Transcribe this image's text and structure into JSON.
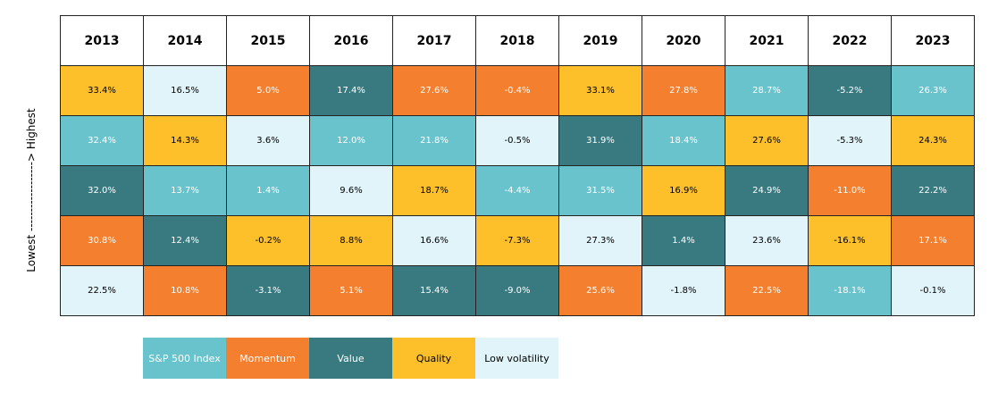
{
  "axis_label": "Lowest ------------------> Highest",
  "table": {
    "columns": [
      "2013",
      "2014",
      "2015",
      "2016",
      "2017",
      "2018",
      "2019",
      "2020",
      "2021",
      "2022",
      "2023"
    ],
    "rows": [
      [
        {
          "text": "33.4%",
          "group": 3
        },
        {
          "text": "16.5%",
          "group": 4
        },
        {
          "text": "5.0%",
          "group": 1
        },
        {
          "text": "17.4%",
          "group": 2
        },
        {
          "text": "27.6%",
          "group": 1
        },
        {
          "text": "-0.4%",
          "group": 1
        },
        {
          "text": "33.1%",
          "group": 3
        },
        {
          "text": "27.8%",
          "group": 1
        },
        {
          "text": "28.7%",
          "group": 0
        },
        {
          "text": "-5.2%",
          "group": 2
        },
        {
          "text": "26.3%",
          "group": 0
        }
      ],
      [
        {
          "text": "32.4%",
          "group": 0
        },
        {
          "text": "14.3%",
          "group": 3
        },
        {
          "text": "3.6%",
          "group": 4
        },
        {
          "text": "12.0%",
          "group": 0
        },
        {
          "text": "21.8%",
          "group": 0
        },
        {
          "text": "-0.5%",
          "group": 4
        },
        {
          "text": "31.9%",
          "group": 2
        },
        {
          "text": "18.4%",
          "group": 0
        },
        {
          "text": "27.6%",
          "group": 3
        },
        {
          "text": "-5.3%",
          "group": 4
        },
        {
          "text": "24.3%",
          "group": 3
        }
      ],
      [
        {
          "text": "32.0%",
          "group": 2
        },
        {
          "text": "13.7%",
          "group": 0
        },
        {
          "text": "1.4%",
          "group": 0
        },
        {
          "text": "9.6%",
          "group": 4
        },
        {
          "text": "18.7%",
          "group": 3
        },
        {
          "text": "-4.4%",
          "group": 0
        },
        {
          "text": "31.5%",
          "group": 0
        },
        {
          "text": "16.9%",
          "group": 3
        },
        {
          "text": "24.9%",
          "group": 2
        },
        {
          "text": "-11.0%",
          "group": 1
        },
        {
          "text": "22.2%",
          "group": 2
        }
      ],
      [
        {
          "text": "30.8%",
          "group": 1
        },
        {
          "text": "12.4%",
          "group": 2
        },
        {
          "text": "-0.2%",
          "group": 3
        },
        {
          "text": "8.8%",
          "group": 3
        },
        {
          "text": "16.6%",
          "group": 4
        },
        {
          "text": "-7.3%",
          "group": 3
        },
        {
          "text": "27.3%",
          "group": 4
        },
        {
          "text": "1.4%",
          "group": 2
        },
        {
          "text": "23.6%",
          "group": 4
        },
        {
          "text": "-16.1%",
          "group": 3
        },
        {
          "text": "17.1%",
          "group": 1
        }
      ],
      [
        {
          "text": "22.5%",
          "group": 4
        },
        {
          "text": "10.8%",
          "group": 1
        },
        {
          "text": "-3.1%",
          "group": 2
        },
        {
          "text": "5.1%",
          "group": 1
        },
        {
          "text": "15.4%",
          "group": 2
        },
        {
          "text": "-9.0%",
          "group": 2
        },
        {
          "text": "25.6%",
          "group": 1
        },
        {
          "text": "-1.8%",
          "group": 4
        },
        {
          "text": "22.5%",
          "group": 1
        },
        {
          "text": "-18.1%",
          "group": 0
        },
        {
          "text": "-0.1%",
          "group": 4
        }
      ]
    ]
  },
  "legend": [
    {
      "name": "S&P 500 Index",
      "color": "#69c3cd",
      "text_color": "#ffffff"
    },
    {
      "name": "Momentum",
      "color": "#f47f2e",
      "text_color": "#ffffff"
    },
    {
      "name": "Value",
      "color": "#387a80",
      "text_color": "#ffffff"
    },
    {
      "name": "Quality",
      "color": "#fdc02b",
      "text_color": "#000000"
    },
    {
      "name": "Low volatility",
      "color": "#e1f4fa",
      "text_color": "#000000"
    }
  ]
}
